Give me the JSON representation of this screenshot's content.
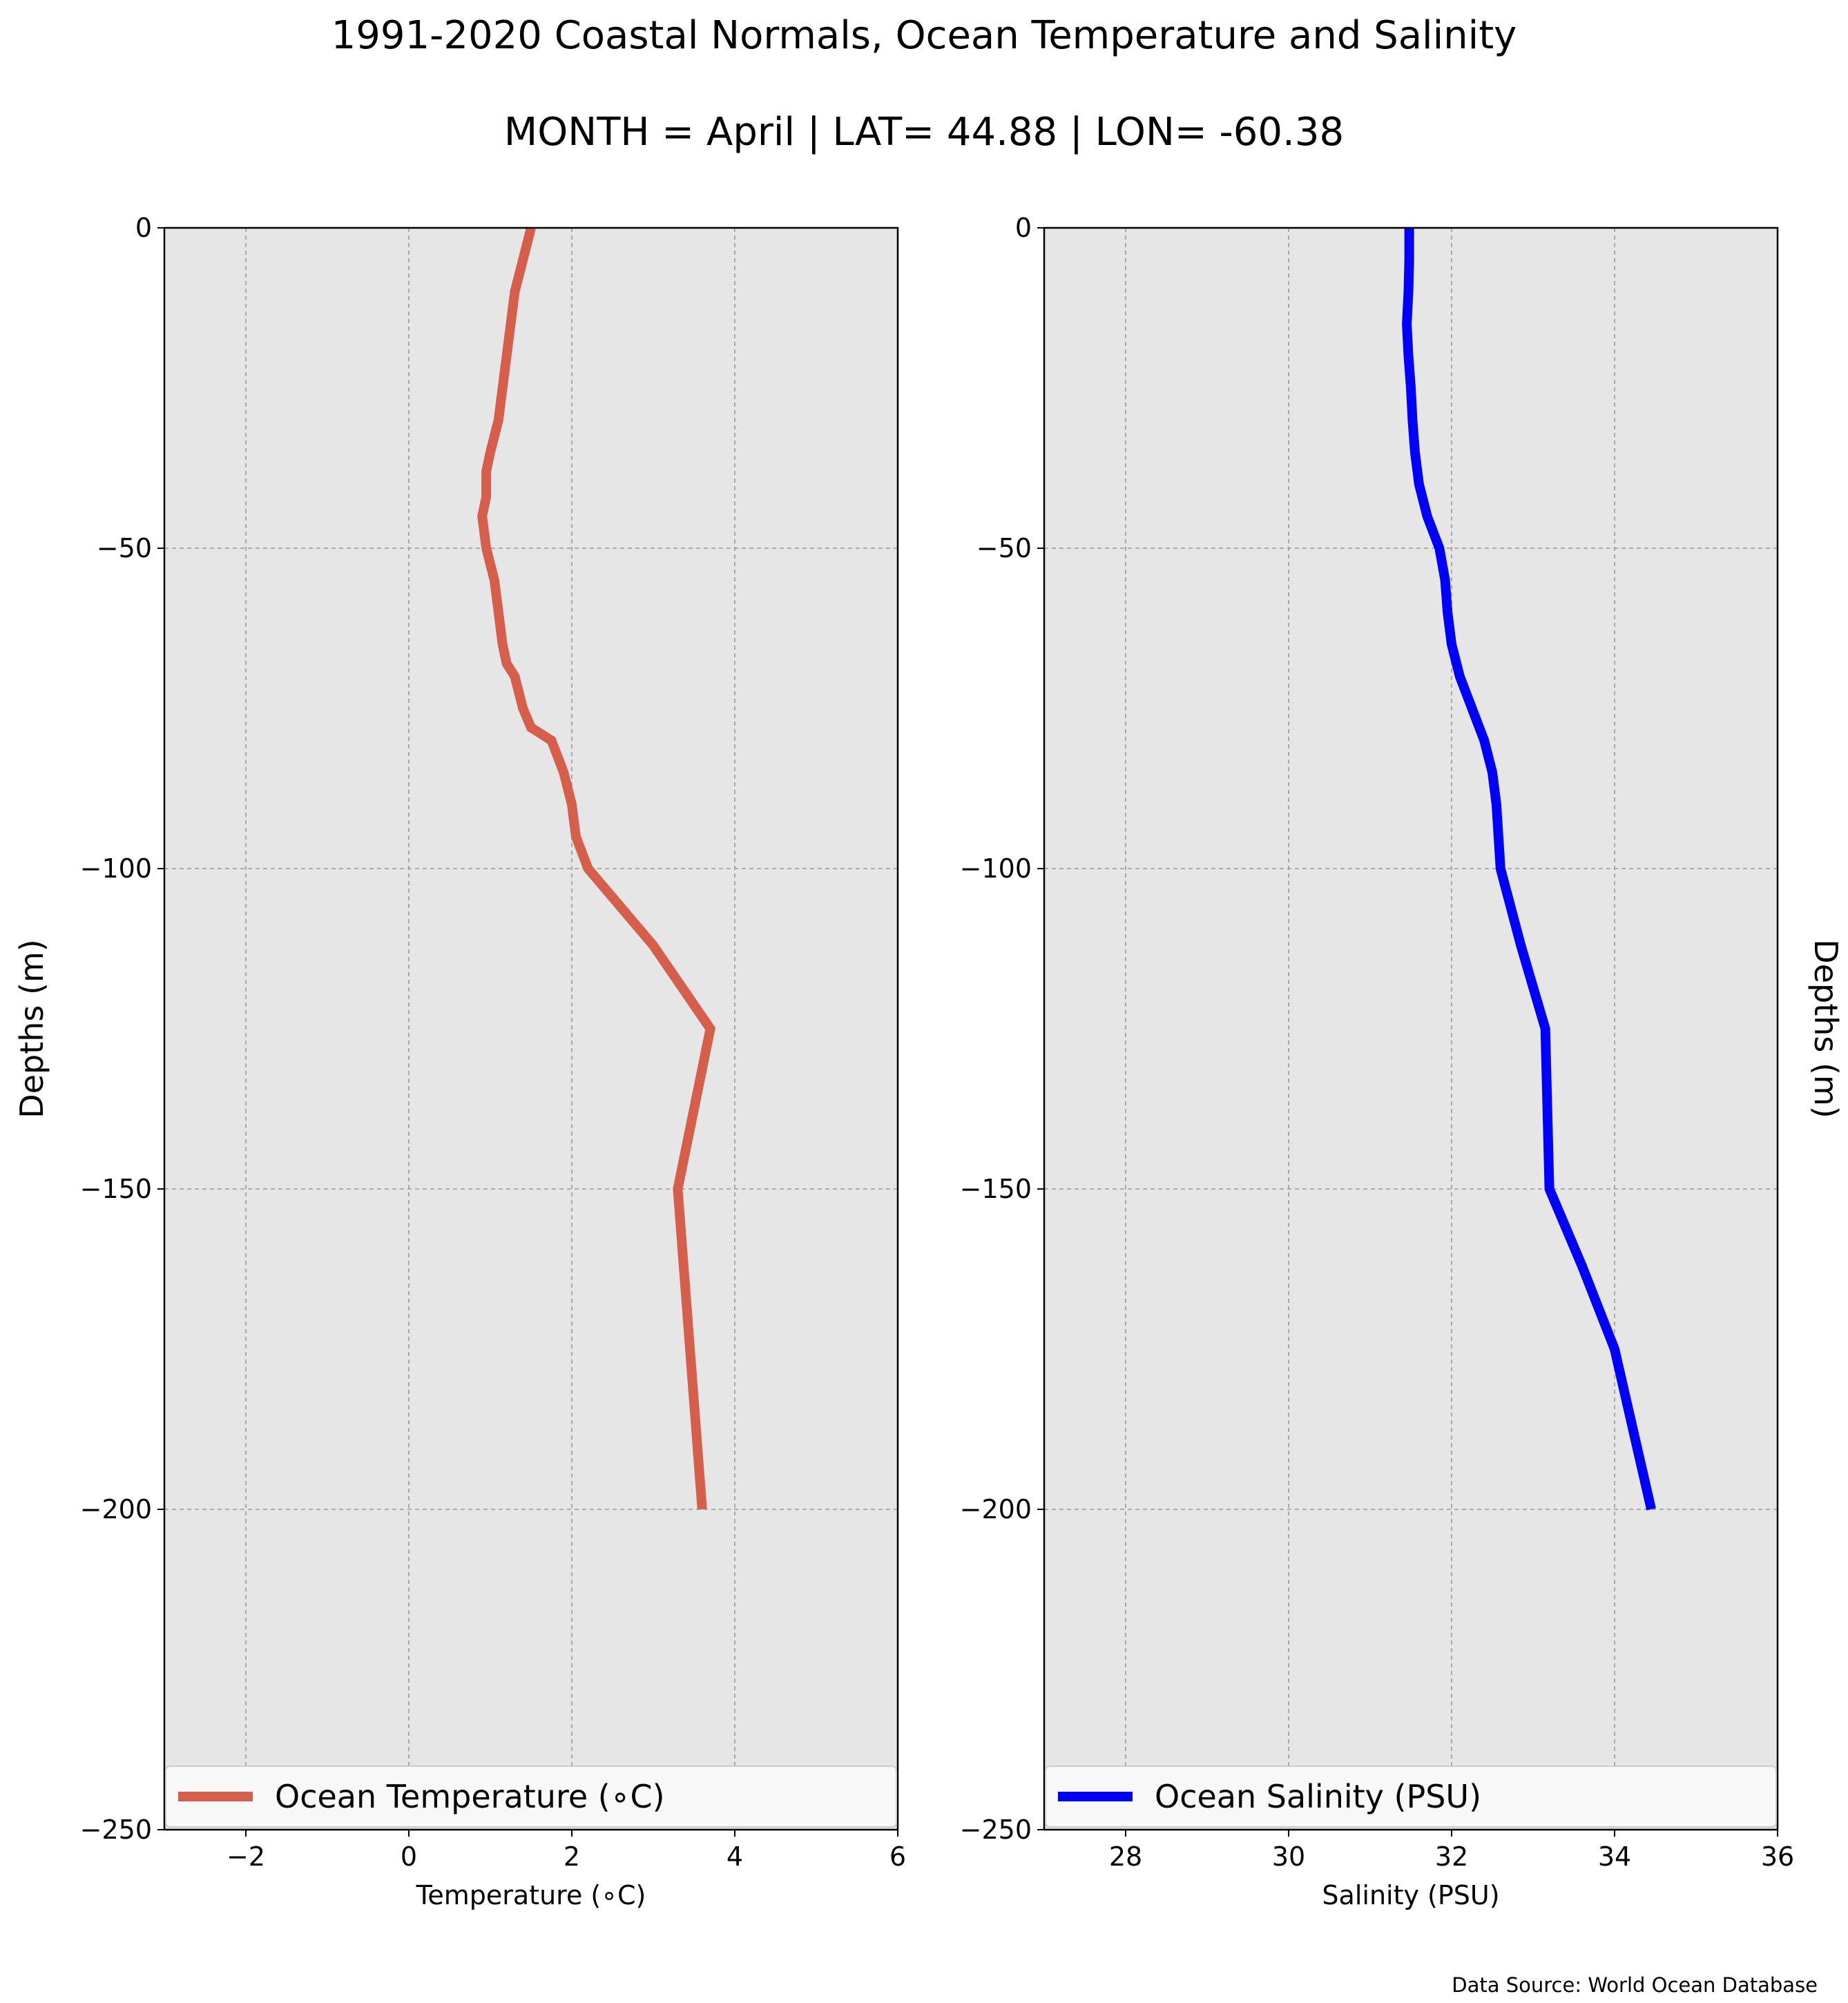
{
  "figure": {
    "title": "1991-2020 Coastal Normals, Ocean Temperature and Salinity",
    "subtitle": "MONTH = April | LAT= 44.88 | LON= -60.38",
    "source": "Data Source: World Ocean Database",
    "background_color": "#ffffff",
    "axes_background_color": "#e6e6e6"
  },
  "chart_data": [
    {
      "type": "line",
      "title": "",
      "xlabel": "Temperature (∘C)",
      "ylabel": "Depths (m)",
      "ylabel_side": "left",
      "xlim": [
        -3,
        6
      ],
      "ylim": [
        -250,
        0
      ],
      "xticks": [
        -2,
        0,
        2,
        4,
        6
      ],
      "xtick_labels": [
        "−2",
        "0",
        "2",
        "4",
        "6"
      ],
      "yticks": [
        0,
        -50,
        -100,
        -150,
        -200,
        -250
      ],
      "ytick_labels": [
        "0",
        "−50",
        "−100",
        "−150",
        "−200",
        "−250"
      ],
      "grid": true,
      "legend_position": "bottom",
      "series": [
        {
          "name": "Ocean Temperature (∘C)",
          "color": "#d65f4c",
          "x": [
            1.5,
            1.4,
            1.3,
            1.25,
            1.2,
            1.15,
            1.1,
            1.0,
            0.95,
            0.95,
            0.95,
            0.9,
            0.95,
            1.05,
            1.1,
            1.15,
            1.2,
            1.3,
            1.4,
            1.5,
            1.75,
            1.9,
            2.0,
            2.05,
            2.2,
            3.0,
            3.7,
            3.3,
            3.45,
            3.6
          ],
          "y": [
            0,
            -5,
            -10,
            -15,
            -20,
            -25,
            -30,
            -35,
            -38,
            -40,
            -42,
            -45,
            -50,
            -55,
            -60,
            -65,
            -68,
            -70,
            -75,
            -78,
            -80,
            -85,
            -90,
            -95,
            -100,
            -112,
            -125,
            -150,
            -175,
            -200
          ]
        }
      ]
    },
    {
      "type": "line",
      "title": "",
      "xlabel": "Salinity (PSU)",
      "ylabel": "Depths (m)",
      "ylabel_side": "right",
      "xlim": [
        27,
        36
      ],
      "ylim": [
        -250,
        0
      ],
      "xticks": [
        28,
        30,
        32,
        34,
        36
      ],
      "xtick_labels": [
        "28",
        "30",
        "32",
        "34",
        "36"
      ],
      "yticks": [
        0,
        -50,
        -100,
        -150,
        -200,
        -250
      ],
      "ytick_labels": [
        "0",
        "−50",
        "−100",
        "−150",
        "−200",
        "−250"
      ],
      "grid": true,
      "legend_position": "bottom",
      "series": [
        {
          "name": "Ocean Salinity (PSU)",
          "color": "#0000ff",
          "x": [
            31.48,
            31.48,
            31.47,
            31.45,
            31.47,
            31.5,
            31.52,
            31.55,
            31.6,
            31.7,
            31.85,
            31.92,
            31.95,
            32.0,
            32.1,
            32.25,
            32.4,
            32.5,
            32.55,
            32.6,
            32.85,
            33.15,
            33.2,
            33.6,
            34.0,
            34.45
          ],
          "y": [
            0,
            -5,
            -10,
            -15,
            -20,
            -25,
            -30,
            -35,
            -40,
            -45,
            -50,
            -55,
            -60,
            -65,
            -70,
            -75,
            -80,
            -85,
            -90,
            -100,
            -112,
            -125,
            -150,
            -162,
            -175,
            -200
          ]
        }
      ]
    }
  ]
}
